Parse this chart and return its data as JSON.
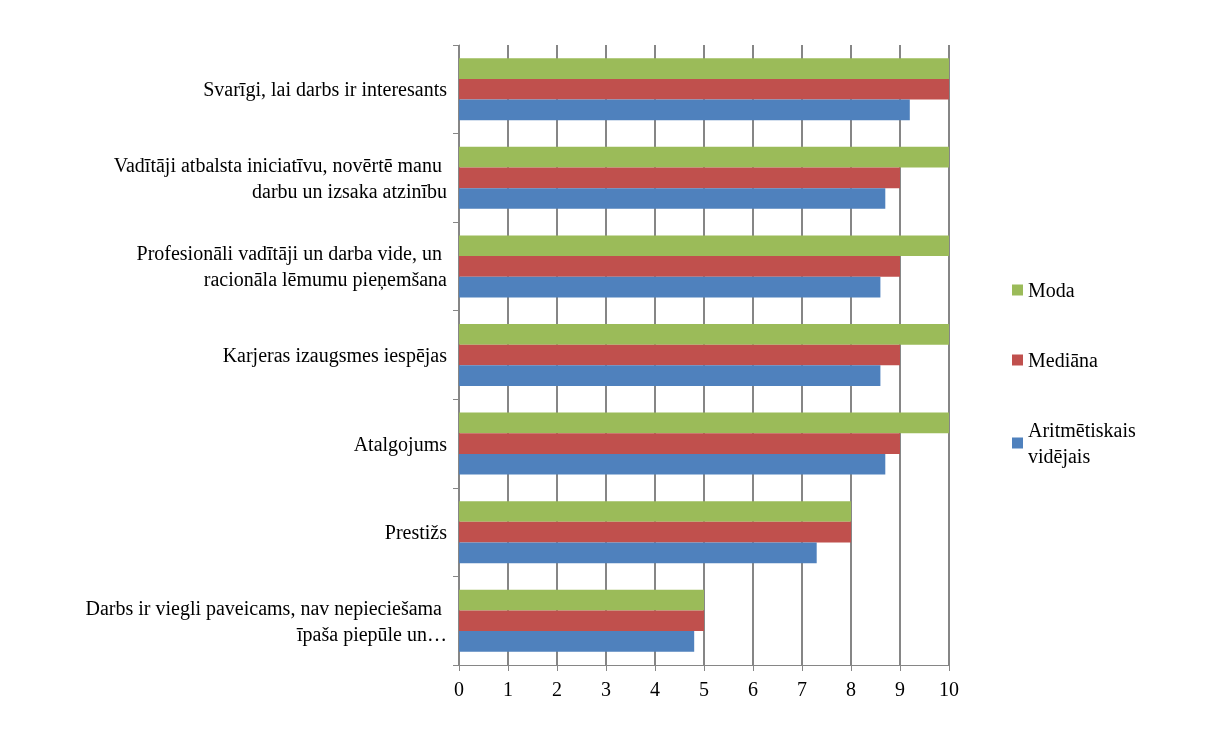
{
  "chart_data": {
    "type": "bar",
    "orientation": "horizontal",
    "categories": [
      "Svarīgi, lai darbs ir interesants",
      "Vadītāji atbalsta iniciatīvu, novērtē manu darbu un izsaka atzinību",
      "Profesionāli vadītāji un darba vide, un racionāla lēmumu pieņemšana",
      "Karjeras izaugsmes iespējas",
      "Atalgojums",
      "Prestižs",
      "Darbs ir viegli paveicams, nav nepieciešama īpaša piepūle un…"
    ],
    "series": [
      {
        "name": "Moda",
        "color": "#9bbb59",
        "values": [
          10,
          10,
          10,
          10,
          10,
          8,
          5
        ]
      },
      {
        "name": "Mediāna",
        "color": "#c0504d",
        "values": [
          10,
          9,
          9,
          9,
          9,
          8,
          5
        ]
      },
      {
        "name": "Aritmētiskais vidējais",
        "color": "#4f81bd",
        "values": [
          9.2,
          8.7,
          8.6,
          8.6,
          8.7,
          7.3,
          4.8
        ]
      }
    ],
    "xlim": [
      0,
      10
    ],
    "xticks": [
      0,
      1,
      2,
      3,
      4,
      5,
      6,
      7,
      8,
      9,
      10
    ],
    "grid": "x",
    "legend": "right"
  }
}
